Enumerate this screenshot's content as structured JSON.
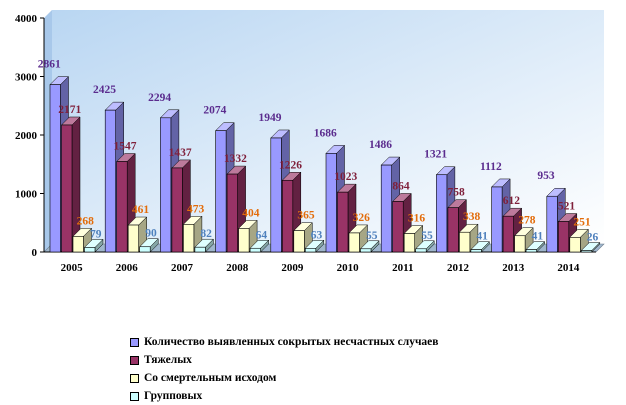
{
  "chart_data": {
    "type": "bar",
    "categories": [
      "2005",
      "2006",
      "2007",
      "2008",
      "2009",
      "2010",
      "2011",
      "2012",
      "2013",
      "2014"
    ],
    "series": [
      {
        "name": "Количество выявленных сокрытых несчастных случаев",
        "color": "#9999FF",
        "label_color": "#5B2C8E",
        "values": [
          2861,
          2425,
          2294,
          2074,
          1949,
          1686,
          1486,
          1321,
          1112,
          953
        ]
      },
      {
        "name": "Тяжелых",
        "color": "#993366",
        "label_color": "#7F1F3A",
        "values": [
          2171,
          1547,
          1437,
          1332,
          1226,
          1023,
          864,
          758,
          612,
          521
        ]
      },
      {
        "name": "Со смертельным исходом",
        "color": "#FFFFCC",
        "label_color": "#E36C0A",
        "values": [
          268,
          461,
          473,
          404,
          365,
          326,
          316,
          338,
          278,
          251
        ]
      },
      {
        "name": "Групповых",
        "color": "#CCFFFF",
        "label_color": "#4F81BD",
        "values": [
          79,
          90,
          82,
          64,
          63,
          55,
          55,
          41,
          41,
          26
        ]
      }
    ],
    "ylim": [
      0,
      4000
    ],
    "yticks": [
      0,
      1000,
      2000,
      3000,
      4000
    ],
    "legend_position": "bottom"
  }
}
